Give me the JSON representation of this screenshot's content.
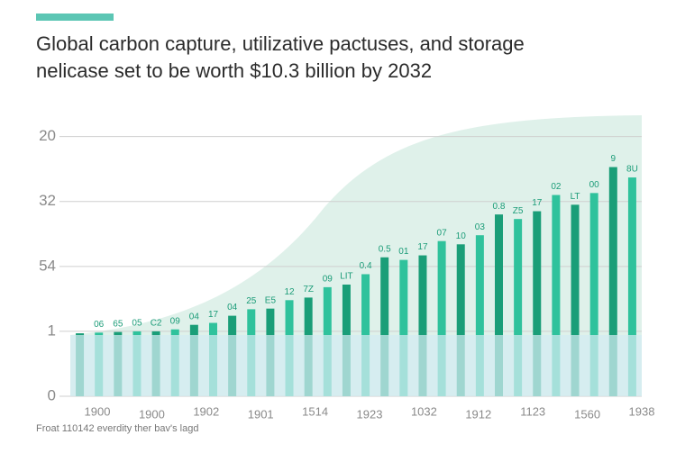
{
  "chart_data": {
    "type": "bar",
    "title": "Global carbon capture, utilizative pactuses, and storage",
    "subtitle": "nelicase set to be worth $10.3 billion by 2032",
    "values": [
      0.97,
      0.98,
      0.99,
      1.0,
      1.0,
      1.03,
      1.1,
      1.13,
      1.24,
      1.34,
      1.35,
      1.48,
      1.52,
      1.68,
      1.72,
      1.88,
      2.14,
      2.1,
      2.17,
      2.39,
      2.34,
      2.48,
      2.8,
      2.73,
      2.85,
      3.1,
      2.95,
      3.13,
      3.53,
      3.37
    ],
    "annotations": [
      null,
      "06",
      "65",
      "05",
      "C2",
      "09",
      "04",
      "17",
      "04",
      "25",
      "E5",
      "12",
      "7Z",
      "09",
      "LIT",
      "0.4",
      "0.5",
      "01",
      "17",
      "07",
      "10",
      "03",
      "0.8",
      "Z5",
      "17",
      "02",
      "LT",
      "00",
      "9",
      "8U"
    ],
    "x_labels": [
      "1900",
      "1900",
      "1902",
      "1901",
      "1514",
      "1923",
      "1032",
      "1912",
      "1123",
      "1560",
      "1938"
    ],
    "colors": [
      "#1a9e78",
      "#2fc29c"
    ],
    "ylim": [
      0,
      4.3
    ],
    "yticks": [
      0,
      1,
      {
        "value": 2,
        "label": "54"
      },
      {
        "value": 3,
        "label": "32"
      },
      {
        "value": 4,
        "label": "20"
      }
    ],
    "grid": true,
    "footnote": "Froat 110142 everdity ther bav's lagd"
  }
}
